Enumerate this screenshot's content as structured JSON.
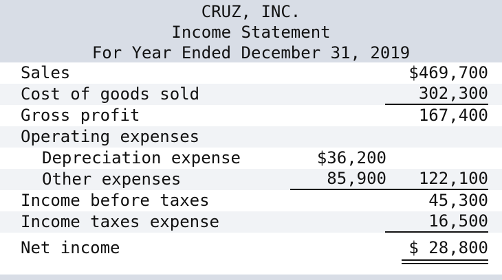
{
  "header": {
    "company": "CRUZ, INC.",
    "statement": "Income Statement",
    "period": "For Year Ended December 31, 2019"
  },
  "rows": {
    "sales": {
      "label": "Sales",
      "col2": "$469,700"
    },
    "cogs": {
      "label": "Cost of goods sold",
      "col2": "302,300"
    },
    "gross_profit": {
      "label": "Gross profit",
      "col2": "167,400"
    },
    "operating_expenses": {
      "label": "Operating expenses"
    },
    "depreciation": {
      "label": "Depreciation expense",
      "col1": "$36,200"
    },
    "other_expenses": {
      "label": "Other expenses",
      "col1": "85,900",
      "col2": "122,100"
    },
    "income_before_taxes": {
      "label": "Income before taxes",
      "col2": "45,300"
    },
    "income_taxes": {
      "label": "Income taxes expense",
      "col2": "16,500"
    },
    "net_income": {
      "label": "Net income",
      "col2": "$ 28,800"
    }
  }
}
